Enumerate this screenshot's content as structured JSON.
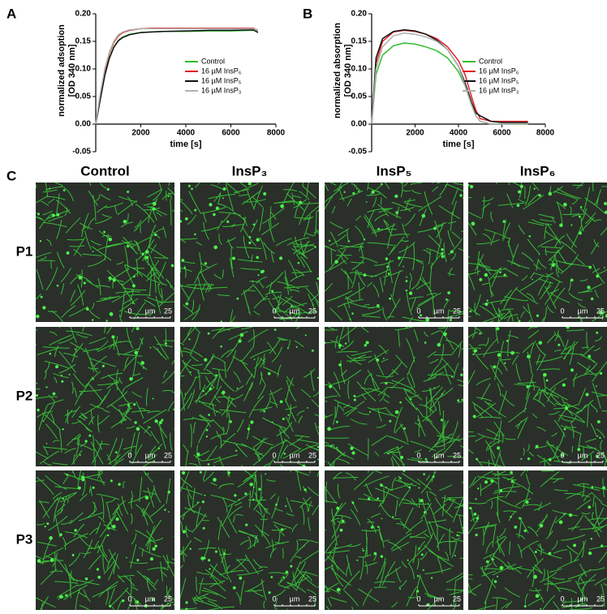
{
  "chart_data": [
    {
      "type": "line",
      "panel_label": "A",
      "xlabel": "time [s]",
      "ylabel": [
        "normalized adsoption",
        "[OD 340 nm]"
      ],
      "x": [
        0,
        200,
        400,
        600,
        800,
        1000,
        1200,
        1500,
        2000,
        2500,
        3000,
        4000,
        5000,
        6000,
        7000,
        7200
      ],
      "series": [
        {
          "name": "Control",
          "color": "#2ebd2e",
          "values": [
            0,
            0.045,
            0.09,
            0.12,
            0.14,
            0.152,
            0.158,
            0.163,
            0.166,
            0.167,
            0.168,
            0.168,
            0.169,
            0.169,
            0.17,
            0.167
          ]
        },
        {
          "name": "16 µM InsP₆",
          "color": "#e02020",
          "values": [
            0,
            0.05,
            0.097,
            0.128,
            0.148,
            0.16,
            0.166,
            0.17,
            0.173,
            0.174,
            0.174,
            0.174,
            0.174,
            0.174,
            0.174,
            0.17
          ]
        },
        {
          "name": "16 µM InsP₅",
          "color": "#111111",
          "values": [
            0,
            0.044,
            0.088,
            0.119,
            0.139,
            0.151,
            0.157,
            0.162,
            0.166,
            0.167,
            0.168,
            0.169,
            0.17,
            0.17,
            0.171,
            0.166
          ]
        },
        {
          "name": "16 µM InsP₃",
          "color": "#b0b0b0",
          "values": [
            0,
            0.055,
            0.1,
            0.13,
            0.15,
            0.162,
            0.167,
            0.171,
            0.173,
            0.173,
            0.173,
            0.173,
            0.173,
            0.173,
            0.173,
            0.171
          ]
        }
      ],
      "xlim": [
        0,
        8000
      ],
      "xticks": [
        0,
        2000,
        4000,
        6000,
        8000
      ],
      "ylim": [
        -0.05,
        0.2
      ],
      "yticks": [
        -0.05,
        {
          "value": 0,
          "label": "0.00"
        },
        0.05,
        {
          "value": 0.1,
          "label": "0.10"
        },
        0.15,
        {
          "value": 0.2,
          "label": "0.20"
        }
      ]
    },
    {
      "type": "line",
      "panel_label": "B",
      "xlabel": "time [s]",
      "ylabel": [
        "normalized absorption",
        "[OD 340 nm]"
      ],
      "x": [
        0,
        200,
        500,
        1000,
        1500,
        2000,
        2500,
        3000,
        3500,
        4000,
        4300,
        4600,
        4800,
        5000,
        5500,
        6000,
        7000,
        7200
      ],
      "series": [
        {
          "name": "Control",
          "color": "#2ebd2e",
          "values": [
            0,
            0.09,
            0.125,
            0.142,
            0.147,
            0.145,
            0.14,
            0.133,
            0.12,
            0.095,
            0.07,
            0.035,
            0.015,
            0.005,
            0,
            0,
            0,
            0
          ]
        },
        {
          "name": "16 µM InsP₆",
          "color": "#e02020",
          "values": [
            0,
            0.11,
            0.15,
            0.167,
            0.17,
            0.168,
            0.163,
            0.155,
            0.14,
            0.115,
            0.09,
            0.05,
            0.025,
            0.01,
            0.005,
            0.005,
            0.005,
            0.005
          ]
        },
        {
          "name": "16 µM InsP₅",
          "color": "#111111",
          "values": [
            0,
            0.12,
            0.155,
            0.168,
            0.171,
            0.169,
            0.163,
            0.152,
            0.135,
            0.105,
            0.075,
            0.04,
            0.02,
            0.015,
            0.005,
            0.003,
            0.003,
            0.003
          ]
        },
        {
          "name": "16 µM InsP₃",
          "color": "#b0b0b0",
          "values": [
            0,
            0.1,
            0.14,
            0.16,
            0.165,
            0.163,
            0.158,
            0.15,
            0.135,
            0.105,
            0.07,
            0.035,
            0.015,
            0.005,
            0,
            0,
            0,
            0
          ]
        }
      ],
      "xlim": [
        0,
        8000
      ],
      "xticks": [
        0,
        2000,
        4000,
        6000,
        8000
      ],
      "ylim": [
        -0.05,
        0.2
      ],
      "yticks": [
        -0.05,
        {
          "value": 0,
          "label": "0.00"
        },
        0.05,
        {
          "value": 0.1,
          "label": "0.10"
        },
        0.15,
        {
          "value": 0.2,
          "label": "0.20"
        }
      ]
    }
  ],
  "panel_c": {
    "panel_label": "C",
    "columns": [
      "Control",
      "InsP₃",
      "InsP₅",
      "InsP₆"
    ],
    "rows": [
      "P1",
      "P2",
      "P3"
    ],
    "scale_bar": {
      "start": "0",
      "unit": "µm",
      "end": "25"
    }
  }
}
